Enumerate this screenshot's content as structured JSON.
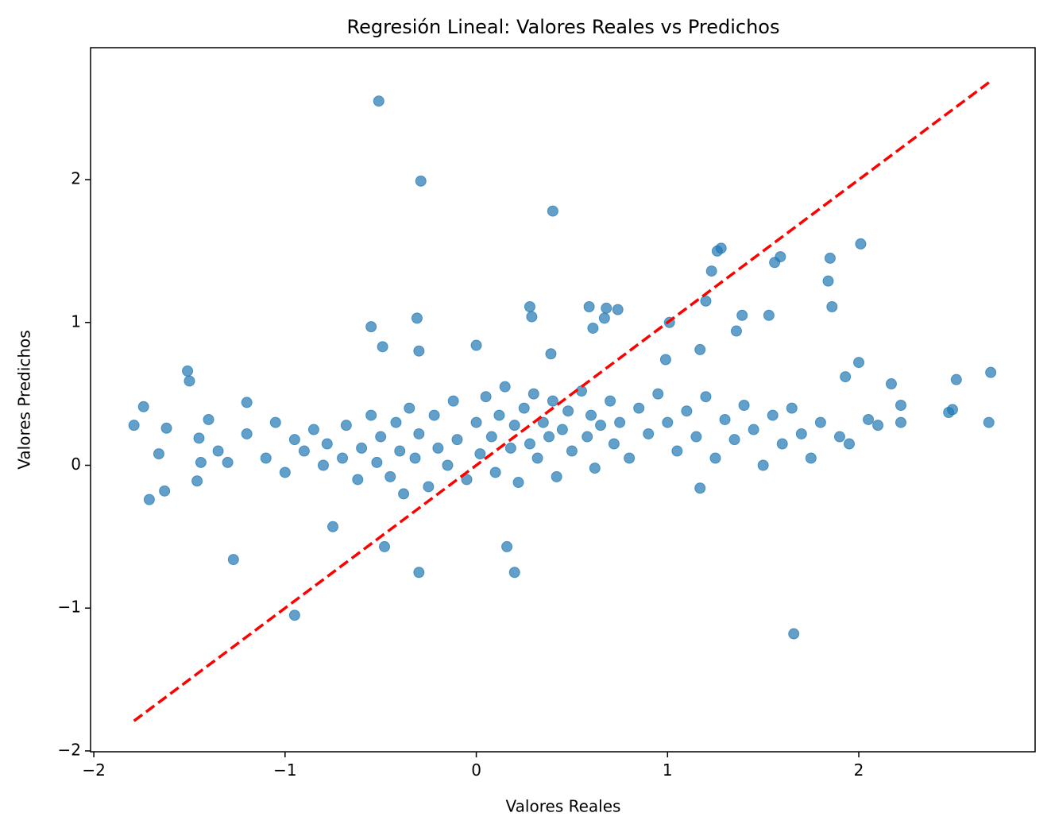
{
  "chart_data": {
    "type": "scatter",
    "title": "Regresión Lineal: Valores Reales vs Predichos",
    "x_label": "Valores Reales",
    "y_label": "Valores Predichos",
    "color": "#1f77b4",
    "x": [
      -0.51,
      -0.29,
      0.4,
      -0.95,
      1.66,
      -1.27,
      -0.3,
      0.2,
      0.16,
      -0.48,
      -0.75,
      2.69,
      2.51,
      2.68,
      2.47,
      2.49,
      -1.79,
      -1.74,
      -1.71,
      -1.63,
      -1.62,
      -1.51,
      -1.5,
      -1.46,
      2.01,
      1.85,
      1.84,
      1.59,
      1.56,
      1.28,
      1.26,
      1.23,
      1.2,
      1.01,
      0.99,
      -0.55,
      -0.31,
      -0.49,
      -0.3,
      0.28,
      0.29,
      0.59,
      0.68,
      0.74,
      0.67,
      0.61,
      0.0,
      0.39,
      1.86,
      1.53,
      1.39,
      1.36,
      1.17,
      2.0,
      1.93,
      2.17,
      1.17,
      -1.2,
      -1.1,
      -1.05,
      -1.0,
      -0.95,
      -0.9,
      -0.85,
      -0.8,
      -0.78,
      -0.7,
      -0.68,
      -0.62,
      -0.6,
      -0.55,
      -0.52,
      -0.5,
      -0.45,
      -0.42,
      -0.4,
      -0.38,
      -0.35,
      -0.32,
      -0.3,
      -0.25,
      -0.22,
      -0.2,
      -0.15,
      -0.12,
      -0.1,
      -0.05,
      0.0,
      0.02,
      0.05,
      0.08,
      0.1,
      0.12,
      0.15,
      0.18,
      0.2,
      0.22,
      0.25,
      0.28,
      0.3,
      0.32,
      0.35,
      0.38,
      0.4,
      0.42,
      0.45,
      0.48,
      0.5,
      0.55,
      0.58,
      0.6,
      0.62,
      0.65,
      0.7,
      0.72,
      0.75,
      0.8,
      0.85,
      0.9,
      0.95,
      1.0,
      1.05,
      1.1,
      1.15,
      1.2,
      1.25,
      1.3,
      1.35,
      1.4,
      1.45,
      1.5,
      1.55,
      1.6,
      1.65,
      1.7,
      1.75,
      1.8,
      1.9,
      1.95,
      2.05,
      2.1,
      2.22,
      2.22,
      -1.4,
      -1.35,
      -1.3,
      -1.2,
      -1.45,
      -1.66,
      -1.44
    ],
    "values": [
      2.55,
      1.99,
      1.78,
      -1.05,
      -1.18,
      -0.66,
      -0.75,
      -0.75,
      -0.57,
      -0.57,
      -0.43,
      0.65,
      0.6,
      0.3,
      0.37,
      0.39,
      0.28,
      0.41,
      -0.24,
      -0.18,
      0.26,
      0.66,
      0.59,
      -0.11,
      1.55,
      1.45,
      1.29,
      1.46,
      1.42,
      1.52,
      1.5,
      1.36,
      1.15,
      1.0,
      0.74,
      0.97,
      1.03,
      0.83,
      0.8,
      1.11,
      1.04,
      1.11,
      1.1,
      1.09,
      1.03,
      0.96,
      0.84,
      0.78,
      1.11,
      1.05,
      1.05,
      0.94,
      0.81,
      0.72,
      0.62,
      0.57,
      -0.16,
      0.22,
      0.05,
      0.3,
      -0.05,
      0.18,
      0.1,
      0.25,
      0.0,
      0.15,
      0.05,
      0.28,
      -0.1,
      0.12,
      0.35,
      0.02,
      0.2,
      -0.08,
      0.3,
      0.1,
      -0.2,
      0.4,
      0.05,
      0.22,
      -0.15,
      0.35,
      0.12,
      0.0,
      0.45,
      0.18,
      -0.1,
      0.3,
      0.08,
      0.48,
      0.2,
      -0.05,
      0.35,
      0.55,
      0.12,
      0.28,
      -0.12,
      0.4,
      0.15,
      0.5,
      0.05,
      0.3,
      0.2,
      0.45,
      -0.08,
      0.25,
      0.38,
      0.1,
      0.52,
      0.2,
      0.35,
      -0.02,
      0.28,
      0.45,
      0.15,
      0.3,
      0.05,
      0.4,
      0.22,
      0.5,
      0.3,
      0.1,
      0.38,
      0.2,
      0.48,
      0.05,
      0.32,
      0.18,
      0.42,
      0.25,
      0.0,
      0.35,
      0.15,
      0.4,
      0.22,
      0.05,
      0.3,
      0.2,
      0.15,
      0.32,
      0.28,
      0.3,
      0.42,
      0.32,
      0.1,
      0.02,
      0.44,
      0.19,
      0.08,
      0.02
    ],
    "reference_line": {
      "x": [
        -1.79,
        2.69
      ],
      "y": [
        -1.79,
        2.69
      ],
      "color": "#ff0000",
      "dashed": true
    },
    "xlim": [
      -2.017,
      2.922
    ],
    "ylim": [
      -2.006,
      2.924
    ],
    "xticks": [
      {
        "value": -2,
        "label": "−2"
      },
      {
        "value": -1,
        "label": "−1"
      },
      0,
      1,
      2
    ],
    "yticks": [
      {
        "value": -2,
        "label": "−2"
      },
      {
        "value": -1,
        "label": "−1"
      },
      0,
      1,
      2
    ]
  }
}
